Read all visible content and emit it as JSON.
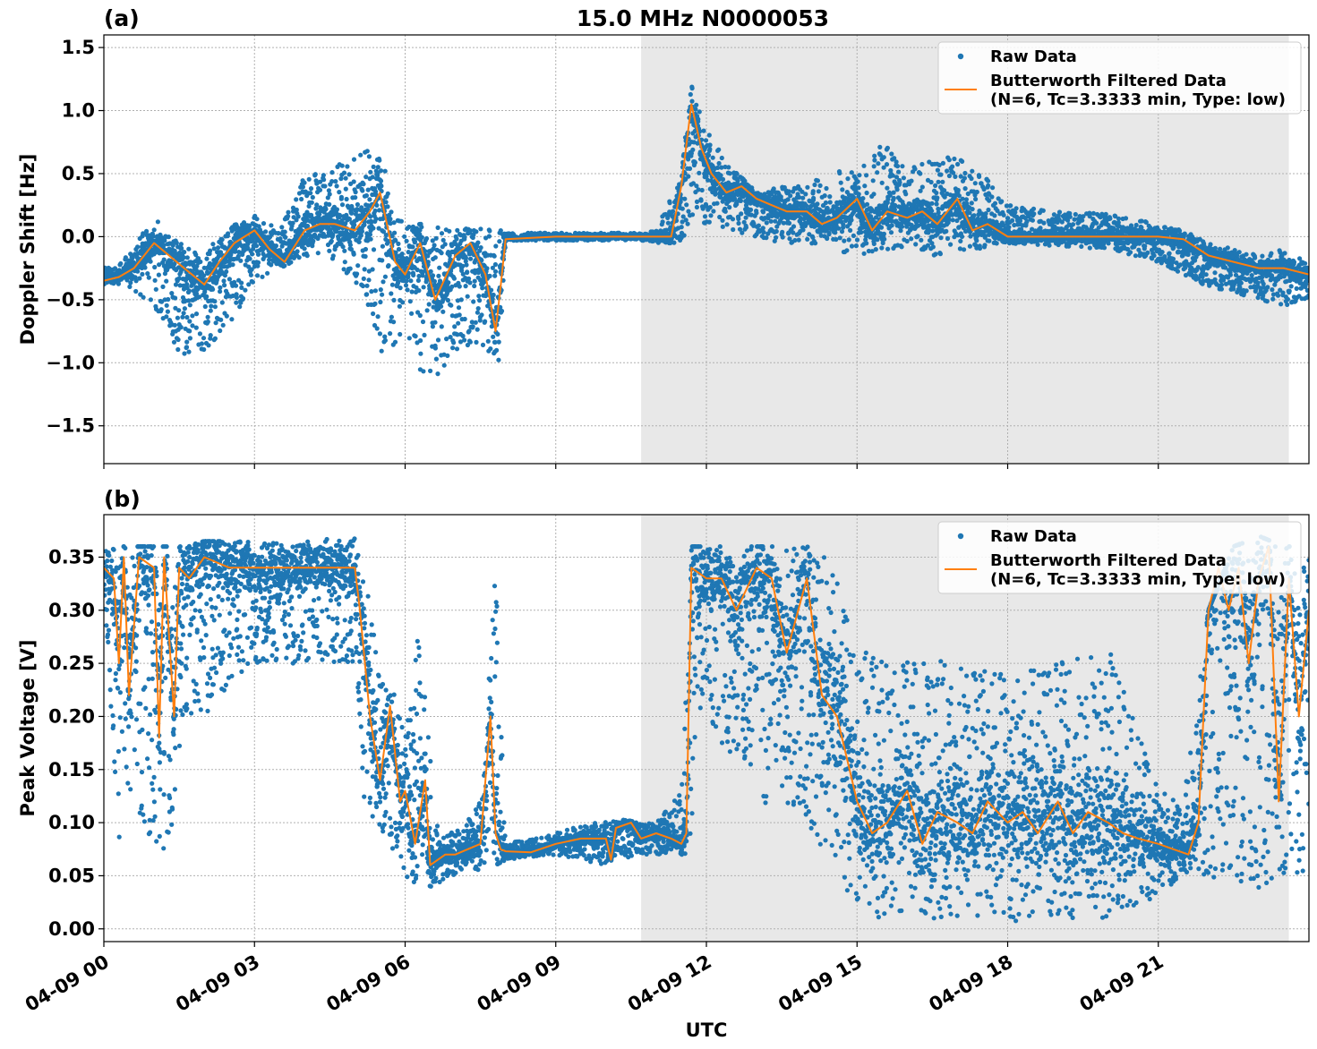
{
  "figure": {
    "title": "15.0 MHz N0000053",
    "xlabel": "UTC",
    "colors": {
      "raw": "#1f77b4",
      "filtered": "#ff7f0e",
      "shade": "#e8e8e8",
      "grid": "#b0b0b0"
    }
  },
  "chart_data": [
    {
      "type": "scatter",
      "panel_label": "(a)",
      "ylabel": "Doppler Shift [Hz]",
      "xlim_hours": [
        0,
        24
      ],
      "ylim": [
        -1.8,
        1.6
      ],
      "yticks": [
        -1.5,
        -1.0,
        -0.5,
        0.0,
        0.5,
        1.0,
        1.5
      ],
      "ytick_labels": [
        "−1.5",
        "−1.0",
        "−0.5",
        "0.0",
        "0.5",
        "1.0",
        "1.5"
      ],
      "xticks_hours": [
        0,
        3,
        6,
        9,
        12,
        15,
        18,
        21
      ],
      "shaded_hours": [
        10.7,
        23.6
      ],
      "grid": true,
      "legend": {
        "placement": "top-right",
        "entries": [
          "Raw Data",
          "Butterworth Filtered Data",
          "(N=6, Tc=3.3333 min, Type: low)"
        ]
      },
      "series": [
        {
          "name": "Raw Data",
          "kind": "scatter-envelope",
          "x": [
            0,
            0.5,
            1.0,
            1.5,
            2.0,
            2.5,
            3.0,
            3.5,
            4.0,
            4.5,
            5.0,
            5.3,
            5.6,
            6.0,
            6.3,
            6.6,
            7.0,
            7.5,
            7.9,
            8.0,
            9.0,
            10.0,
            10.7,
            11.0,
            11.5,
            11.7,
            12.0,
            12.5,
            13.0,
            13.5,
            14.0,
            14.5,
            15.0,
            15.5,
            16.0,
            16.5,
            17.0,
            17.5,
            18.0,
            19.0,
            20.0,
            21.0,
            21.5,
            22.0,
            22.5,
            23.0,
            23.5,
            24.0
          ],
          "upper": [
            -0.25,
            -0.15,
            0.18,
            -0.05,
            -0.15,
            0.12,
            0.17,
            0.05,
            0.48,
            0.55,
            0.62,
            0.75,
            0.55,
            0.08,
            0.1,
            0.08,
            0.05,
            0.08,
            0.05,
            0.03,
            0.03,
            0.03,
            0.03,
            0.05,
            0.5,
            1.2,
            0.85,
            0.55,
            0.35,
            0.4,
            0.42,
            0.55,
            0.5,
            0.75,
            0.55,
            0.6,
            0.65,
            0.5,
            0.25,
            0.2,
            0.18,
            0.1,
            0.05,
            -0.05,
            -0.1,
            -0.15,
            -0.1,
            -0.2
          ],
          "lower": [
            -0.38,
            -0.4,
            -0.55,
            -0.95,
            -0.9,
            -0.7,
            -0.35,
            -0.25,
            -0.15,
            -0.2,
            -0.35,
            -0.6,
            -1.0,
            -0.7,
            -1.1,
            -1.2,
            -0.9,
            -0.85,
            -1.0,
            -0.03,
            -0.03,
            -0.03,
            -0.03,
            -0.05,
            -0.05,
            0.1,
            0.1,
            0.05,
            0.0,
            -0.05,
            -0.05,
            -0.1,
            -0.15,
            -0.1,
            -0.1,
            -0.15,
            -0.12,
            -0.1,
            -0.05,
            -0.08,
            -0.1,
            -0.2,
            -0.3,
            -0.4,
            -0.45,
            -0.5,
            -0.55,
            -0.5
          ]
        },
        {
          "name": "Butterworth Filtered Data",
          "kind": "line",
          "x": [
            0,
            0.3,
            0.6,
            1.0,
            1.3,
            1.6,
            2.0,
            2.3,
            2.6,
            3.0,
            3.3,
            3.6,
            4.0,
            4.3,
            4.6,
            5.0,
            5.3,
            5.5,
            5.8,
            6.0,
            6.3,
            6.6,
            7.0,
            7.3,
            7.6,
            7.8,
            7.9,
            8.0,
            9.0,
            10.0,
            10.7,
            11.0,
            11.3,
            11.5,
            11.7,
            11.9,
            12.1,
            12.4,
            12.7,
            13.0,
            13.3,
            13.6,
            14.0,
            14.3,
            14.6,
            15.0,
            15.3,
            15.6,
            16.0,
            16.3,
            16.6,
            17.0,
            17.3,
            17.6,
            18.0,
            18.5,
            19.0,
            19.5,
            20.0,
            20.5,
            21.0,
            21.5,
            22.0,
            22.5,
            23.0,
            23.5,
            24.0
          ],
          "y": [
            -0.35,
            -0.32,
            -0.25,
            -0.05,
            -0.15,
            -0.25,
            -0.38,
            -0.2,
            -0.05,
            0.05,
            -0.1,
            -0.2,
            0.05,
            0.1,
            0.1,
            0.05,
            0.2,
            0.35,
            -0.2,
            -0.3,
            -0.05,
            -0.5,
            -0.15,
            -0.05,
            -0.3,
            -0.75,
            -0.4,
            -0.02,
            0.0,
            0.0,
            0.0,
            0.0,
            0.0,
            0.4,
            1.05,
            0.7,
            0.5,
            0.35,
            0.4,
            0.3,
            0.25,
            0.2,
            0.2,
            0.1,
            0.15,
            0.3,
            0.05,
            0.2,
            0.15,
            0.2,
            0.1,
            0.3,
            0.05,
            0.1,
            0.0,
            0.0,
            0.0,
            0.0,
            0.0,
            0.0,
            0.0,
            -0.02,
            -0.15,
            -0.2,
            -0.25,
            -0.25,
            -0.3
          ]
        }
      ]
    },
    {
      "type": "scatter",
      "panel_label": "(b)",
      "ylabel": "Peak Voltage [V]",
      "xlim_hours": [
        0,
        24
      ],
      "ylim": [
        -0.012,
        0.39
      ],
      "yticks": [
        0.0,
        0.05,
        0.1,
        0.15,
        0.2,
        0.25,
        0.3,
        0.35
      ],
      "ytick_labels": [
        "0.00",
        "0.05",
        "0.10",
        "0.15",
        "0.20",
        "0.25",
        "0.30",
        "0.35"
      ],
      "xticks_hours": [
        0,
        3,
        6,
        9,
        12,
        15,
        18,
        21
      ],
      "xtick_labels": [
        "04-09 00",
        "04-09 03",
        "04-09 06",
        "04-09 09",
        "04-09 12",
        "04-09 15",
        "04-09 18",
        "04-09 21"
      ],
      "shaded_hours": [
        10.7,
        23.6
      ],
      "grid": true,
      "legend": {
        "placement": "top-right",
        "entries": [
          "Raw Data",
          "Butterworth Filtered Data",
          "(N=6, Tc=3.3333 min, Type: low)"
        ]
      },
      "series": [
        {
          "name": "Raw Data",
          "kind": "scatter-envelope",
          "x": [
            0,
            0.3,
            0.6,
            1.0,
            1.3,
            1.6,
            2.0,
            3.0,
            4.0,
            5.0,
            5.2,
            5.5,
            5.8,
            6.0,
            6.3,
            6.6,
            7.0,
            7.5,
            7.8,
            8.0,
            9.0,
            10.0,
            10.7,
            11.0,
            11.5,
            11.7,
            12.0,
            13.0,
            14.0,
            14.5,
            15.0,
            16.0,
            17.0,
            18.0,
            19.0,
            20.0,
            21.0,
            21.5,
            22.0,
            22.5,
            23.0,
            23.5,
            24.0
          ],
          "upper": [
            0.36,
            0.36,
            0.36,
            0.36,
            0.36,
            0.36,
            0.365,
            0.365,
            0.365,
            0.37,
            0.33,
            0.25,
            0.23,
            0.18,
            0.3,
            0.1,
            0.09,
            0.12,
            0.34,
            0.08,
            0.09,
            0.105,
            0.1,
            0.1,
            0.13,
            0.36,
            0.36,
            0.36,
            0.36,
            0.35,
            0.26,
            0.26,
            0.25,
            0.24,
            0.25,
            0.27,
            0.13,
            0.12,
            0.3,
            0.36,
            0.37,
            0.36,
            0.36
          ],
          "lower": [
            0.3,
            0.08,
            0.12,
            0.07,
            0.07,
            0.2,
            0.2,
            0.25,
            0.25,
            0.25,
            0.11,
            0.09,
            0.07,
            0.05,
            0.04,
            0.04,
            0.05,
            0.055,
            0.06,
            0.065,
            0.07,
            0.06,
            0.07,
            0.07,
            0.07,
            0.07,
            0.2,
            0.12,
            0.1,
            0.06,
            0.01,
            0.01,
            0.01,
            0.005,
            0.01,
            0.01,
            0.03,
            0.05,
            0.05,
            0.04,
            0.03,
            0.05,
            0.05
          ]
        },
        {
          "name": "Butterworth Filtered Data",
          "kind": "line",
          "x": [
            0,
            0.2,
            0.3,
            0.4,
            0.5,
            0.7,
            1.0,
            1.1,
            1.2,
            1.4,
            1.5,
            1.7,
            2.0,
            2.5,
            3.0,
            3.5,
            4.0,
            4.5,
            5.0,
            5.1,
            5.3,
            5.5,
            5.7,
            5.9,
            6.0,
            6.2,
            6.4,
            6.5,
            6.8,
            7.0,
            7.5,
            7.7,
            7.8,
            7.9,
            8.0,
            8.5,
            9.0,
            9.5,
            10.0,
            10.1,
            10.2,
            10.5,
            10.7,
            11.0,
            11.3,
            11.5,
            11.6,
            11.7,
            12.0,
            12.3,
            12.6,
            13.0,
            13.3,
            13.6,
            14.0,
            14.3,
            14.6,
            15.0,
            15.3,
            15.6,
            16.0,
            16.3,
            16.6,
            17.0,
            17.3,
            17.6,
            18.0,
            18.3,
            18.6,
            19.0,
            19.3,
            19.6,
            20.0,
            20.3,
            20.6,
            21.0,
            21.3,
            21.6,
            21.8,
            22.0,
            22.2,
            22.4,
            22.6,
            22.8,
            23.0,
            23.2,
            23.4,
            23.6,
            23.8,
            24.0
          ],
          "y": [
            0.34,
            0.33,
            0.25,
            0.35,
            0.22,
            0.35,
            0.34,
            0.18,
            0.35,
            0.2,
            0.34,
            0.33,
            0.35,
            0.34,
            0.34,
            0.34,
            0.34,
            0.34,
            0.34,
            0.3,
            0.2,
            0.14,
            0.21,
            0.12,
            0.13,
            0.08,
            0.14,
            0.06,
            0.07,
            0.07,
            0.08,
            0.2,
            0.09,
            0.075,
            0.073,
            0.072,
            0.08,
            0.085,
            0.085,
            0.065,
            0.095,
            0.1,
            0.085,
            0.09,
            0.085,
            0.08,
            0.09,
            0.34,
            0.33,
            0.33,
            0.3,
            0.34,
            0.33,
            0.26,
            0.33,
            0.22,
            0.2,
            0.12,
            0.09,
            0.1,
            0.13,
            0.08,
            0.11,
            0.1,
            0.09,
            0.12,
            0.1,
            0.11,
            0.09,
            0.12,
            0.09,
            0.11,
            0.1,
            0.09,
            0.085,
            0.08,
            0.075,
            0.07,
            0.1,
            0.3,
            0.34,
            0.3,
            0.34,
            0.25,
            0.33,
            0.36,
            0.12,
            0.33,
            0.2,
            0.3
          ]
        }
      ]
    }
  ]
}
